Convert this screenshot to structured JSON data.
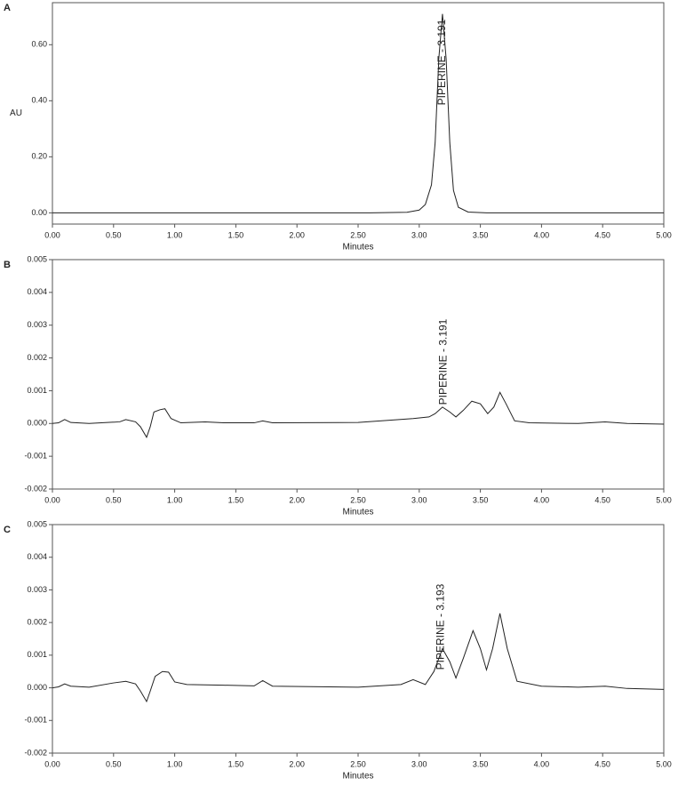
{
  "chart_data": [
    {
      "type": "line",
      "panel_label": "A",
      "x_label": "Minutes",
      "y_label": "AU",
      "annotation": {
        "text": "PIPERINE - 3.191",
        "x": 3.19
      },
      "x": [
        0,
        2.6,
        2.9,
        3.0,
        3.05,
        3.1,
        3.13,
        3.16,
        3.19,
        3.22,
        3.25,
        3.28,
        3.32,
        3.4,
        3.55,
        5.0
      ],
      "series": [
        {
          "color": "#222222",
          "values": [
            0,
            0,
            0.002,
            0.01,
            0.03,
            0.1,
            0.25,
            0.55,
            0.71,
            0.55,
            0.25,
            0.08,
            0.02,
            0.003,
            0,
            0
          ]
        }
      ],
      "xlim": [
        0,
        5
      ],
      "ylim": [
        -0.04,
        0.75
      ],
      "xticks": [
        {
          "value": 0,
          "label": "0.00"
        },
        {
          "value": 0.5,
          "label": "0.50"
        },
        {
          "value": 1,
          "label": "1.00"
        },
        {
          "value": 1.5,
          "label": "1.50"
        },
        {
          "value": 2,
          "label": "2.00"
        },
        {
          "value": 2.5,
          "label": "2.50"
        },
        {
          "value": 3,
          "label": "3.00"
        },
        {
          "value": 3.5,
          "label": "3.50"
        },
        {
          "value": 4,
          "label": "4.00"
        },
        {
          "value": 4.5,
          "label": "4.50"
        },
        {
          "value": 5,
          "label": "5.00"
        }
      ],
      "yticks": [
        {
          "value": 0,
          "label": "0.00"
        },
        {
          "value": 0.2,
          "label": "0.20"
        },
        {
          "value": 0.4,
          "label": "0.40"
        },
        {
          "value": 0.6,
          "label": "0.60"
        }
      ]
    },
    {
      "type": "line",
      "panel_label": "B",
      "x_label": "Minutes",
      "annotation": {
        "text": "PIPERINE - 3.191",
        "x": 3.2
      },
      "x": [
        0,
        0.05,
        0.1,
        0.15,
        0.3,
        0.55,
        0.6,
        0.68,
        0.72,
        0.77,
        0.8,
        0.83,
        0.88,
        0.92,
        0.97,
        1.05,
        1.25,
        1.4,
        1.65,
        1.72,
        1.8,
        2.5,
        2.95,
        3.08,
        3.13,
        3.19,
        3.25,
        3.3,
        3.36,
        3.43,
        3.5,
        3.56,
        3.61,
        3.66,
        3.71,
        3.78,
        3.9,
        4.3,
        4.52,
        4.7,
        5.0
      ],
      "series": [
        {
          "color": "#222222",
          "values": [
            0,
            2e-05,
            0.00012,
            3e-05,
            0,
            5e-05,
            0.00012,
            5e-05,
            -0.0001,
            -0.00042,
            -0.0001,
            0.00035,
            0.00042,
            0.00045,
            0.00015,
            2e-05,
            5e-05,
            2e-05,
            2e-05,
            8e-05,
            2e-05,
            3e-05,
            0.00015,
            0.0002,
            0.0003,
            0.0005,
            0.00035,
            0.0002,
            0.0004,
            0.00068,
            0.0006,
            0.0003,
            0.0005,
            0.00095,
            0.0006,
            8e-05,
            2e-05,
            0,
            5e-05,
            0,
            -2e-05
          ]
        }
      ],
      "xlim": [
        0,
        5
      ],
      "ylim": [
        -0.002,
        0.005
      ],
      "xticks": [
        {
          "value": 0,
          "label": "0.00"
        },
        {
          "value": 0.5,
          "label": "0.50"
        },
        {
          "value": 1,
          "label": "1.00"
        },
        {
          "value": 1.5,
          "label": "1.50"
        },
        {
          "value": 2,
          "label": "2.00"
        },
        {
          "value": 2.5,
          "label": "2.50"
        },
        {
          "value": 3,
          "label": "3.00"
        },
        {
          "value": 3.5,
          "label": "3.50"
        },
        {
          "value": 4,
          "label": "4.00"
        },
        {
          "value": 4.5,
          "label": "4.50"
        },
        {
          "value": 5,
          "label": "5.00"
        }
      ],
      "yticks": [
        -0.002,
        -0.001,
        {
          "value": 0,
          "label": "0.000"
        },
        0.001,
        0.002,
        0.003,
        0.004,
        0.005
      ]
    },
    {
      "type": "line",
      "panel_label": "C",
      "x_label": "Minutes",
      "annotation": {
        "text": "PIPERINE - 3.193",
        "x": 3.18
      },
      "x": [
        0,
        0.05,
        0.1,
        0.15,
        0.3,
        0.5,
        0.6,
        0.68,
        0.72,
        0.77,
        0.8,
        0.84,
        0.9,
        0.95,
        1.0,
        1.1,
        1.4,
        1.65,
        1.72,
        1.8,
        2.5,
        2.85,
        2.95,
        3.05,
        3.12,
        3.19,
        3.25,
        3.3,
        3.36,
        3.44,
        3.5,
        3.55,
        3.6,
        3.66,
        3.72,
        3.8,
        4.0,
        4.3,
        4.52,
        4.7,
        5.0
      ],
      "series": [
        {
          "color": "#222222",
          "values": [
            0,
            3e-05,
            0.00012,
            5e-05,
            2e-05,
            0.00015,
            0.0002,
            0.00012,
            -0.0001,
            -0.00042,
            -0.0001,
            0.00035,
            0.0005,
            0.00048,
            0.00018,
            0.0001,
            8e-05,
            6e-05,
            0.00022,
            5e-05,
            2e-05,
            0.0001,
            0.00025,
            0.0001,
            0.0005,
            0.0012,
            0.0008,
            0.0003,
            0.0009,
            0.00175,
            0.0012,
            0.00055,
            0.0012,
            0.00228,
            0.0012,
            0.0002,
            5e-05,
            2e-05,
            5e-05,
            -2e-05,
            -5e-05
          ]
        }
      ],
      "xlim": [
        0,
        5
      ],
      "ylim": [
        -0.002,
        0.005
      ],
      "xticks": [
        {
          "value": 0,
          "label": "0.00"
        },
        {
          "value": 0.5,
          "label": "0.50"
        },
        {
          "value": 1,
          "label": "1.00"
        },
        {
          "value": 1.5,
          "label": "1.50"
        },
        {
          "value": 2,
          "label": "2.00"
        },
        {
          "value": 2.5,
          "label": "2.50"
        },
        {
          "value": 3,
          "label": "3.00"
        },
        {
          "value": 3.5,
          "label": "3.50"
        },
        {
          "value": 4,
          "label": "4.00"
        },
        {
          "value": 4.5,
          "label": "4.50"
        },
        {
          "value": 5,
          "label": "5.00"
        }
      ],
      "yticks": [
        -0.002,
        -0.001,
        {
          "value": 0,
          "label": "0.000"
        },
        0.001,
        0.002,
        0.003,
        0.004,
        0.005
      ]
    }
  ]
}
